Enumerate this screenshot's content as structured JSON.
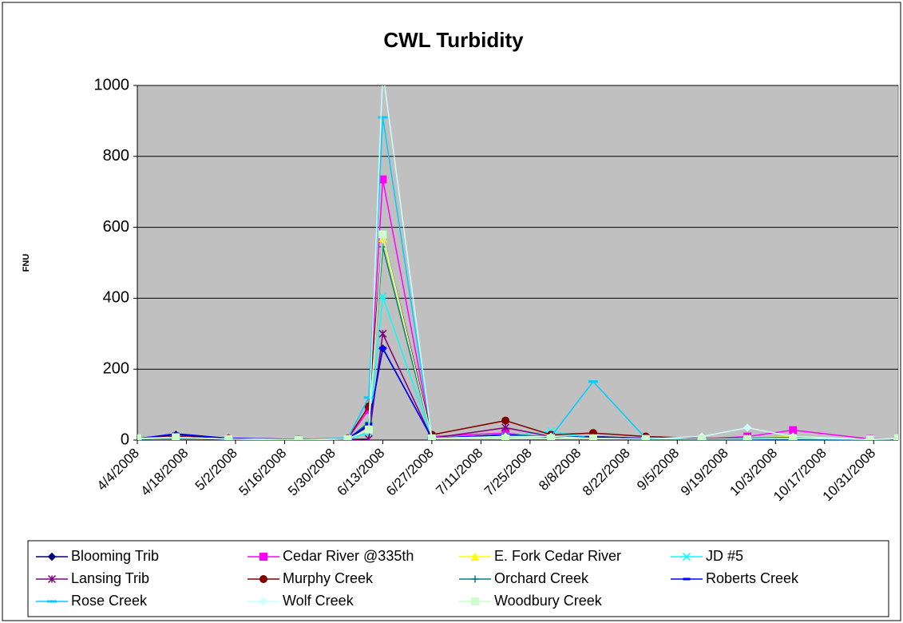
{
  "chart_data": {
    "type": "line",
    "title": "CWL Turbidity",
    "y_label": "FNU",
    "x": [
      "2008-04-04",
      "2008-04-15",
      "2008-04-30",
      "2008-05-20",
      "2008-06-03",
      "2008-06-09",
      "2008-06-13",
      "2008-06-27",
      "2008-07-18",
      "2008-07-31",
      "2008-08-12",
      "2008-08-27",
      "2008-09-12",
      "2008-09-25",
      "2008-10-08",
      "2008-10-30",
      "2008-11-07"
    ],
    "xlim": [
      "2008-04-04",
      "2008-11-07"
    ],
    "xticks": [
      {
        "value": "2008-04-04",
        "label": "4/4/2008"
      },
      {
        "value": "2008-04-18",
        "label": "4/18/2008"
      },
      {
        "value": "2008-05-02",
        "label": "5/2/2008"
      },
      {
        "value": "2008-05-16",
        "label": "5/16/2008"
      },
      {
        "value": "2008-05-30",
        "label": "5/30/2008"
      },
      {
        "value": "2008-06-13",
        "label": "6/13/2008"
      },
      {
        "value": "2008-06-27",
        "label": "6/27/2008"
      },
      {
        "value": "2008-07-11",
        "label": "7/11/2008"
      },
      {
        "value": "2008-07-25",
        "label": "7/25/2008"
      },
      {
        "value": "2008-08-08",
        "label": "8/8/2008"
      },
      {
        "value": "2008-08-22",
        "label": "8/22/2008"
      },
      {
        "value": "2008-09-05",
        "label": "9/5/2008"
      },
      {
        "value": "2008-09-19",
        "label": "9/19/2008"
      },
      {
        "value": "2008-10-03",
        "label": "10/3/2008"
      },
      {
        "value": "2008-10-17",
        "label": "10/17/2008"
      },
      {
        "value": "2008-10-31",
        "label": "10/31/2008"
      }
    ],
    "ylim": [
      0,
      1000
    ],
    "yticks": [
      0,
      200,
      400,
      600,
      800,
      1000
    ],
    "grid": true,
    "legend": "bottom",
    "series": [
      {
        "name": "Blooming Trib",
        "color": "#000080",
        "marker": "diamond",
        "values": [
          5,
          15,
          5,
          2,
          3,
          40,
          258,
          5,
          15,
          8,
          10,
          5,
          3,
          2,
          3,
          2,
          3
        ]
      },
      {
        "name": "Cedar River @335th",
        "color": "#ff00ff",
        "marker": "square",
        "values": [
          3,
          8,
          3,
          2,
          3,
          85,
          735,
          10,
          20,
          5,
          8,
          5,
          3,
          10,
          28,
          3,
          3
        ]
      },
      {
        "name": "E. Fork Cedar River",
        "color": "#ffff00",
        "marker": "triangle",
        "values": [
          3,
          5,
          2,
          1,
          3,
          30,
          570,
          5,
          10,
          5,
          8,
          5,
          3,
          5,
          10,
          2,
          3
        ]
      },
      {
        "name": "JD #5",
        "color": "#00ffff",
        "marker": "x",
        "values": [
          3,
          5,
          3,
          1,
          3,
          20,
          405,
          5,
          10,
          25,
          5,
          3,
          3,
          3,
          5,
          2,
          3
        ]
      },
      {
        "name": "Lansing Trib",
        "color": "#800080",
        "marker": "star",
        "values": [
          3,
          5,
          2,
          1,
          2,
          3,
          300,
          5,
          35,
          10,
          8,
          5,
          3,
          5,
          5,
          2,
          3
        ]
      },
      {
        "name": "Murphy Creek",
        "color": "#800000",
        "marker": "circle",
        "values": [
          5,
          10,
          5,
          2,
          5,
          95,
          580,
          15,
          55,
          15,
          20,
          10,
          5,
          5,
          5,
          3,
          3
        ]
      },
      {
        "name": "Orchard Creek",
        "color": "#008080",
        "marker": "plus",
        "values": [
          3,
          5,
          3,
          1,
          3,
          50,
          545,
          5,
          15,
          10,
          8,
          5,
          3,
          5,
          8,
          2,
          3
        ]
      },
      {
        "name": "Roberts Creek",
        "color": "#0000ff",
        "marker": "dash",
        "values": [
          4,
          18,
          5,
          2,
          3,
          45,
          260,
          5,
          15,
          8,
          8,
          5,
          3,
          3,
          3,
          2,
          3
        ]
      },
      {
        "name": "Rose Creek",
        "color": "#00ccff",
        "marker": "bar",
        "values": [
          3,
          5,
          3,
          1,
          5,
          120,
          910,
          5,
          10,
          10,
          165,
          5,
          3,
          3,
          3,
          2,
          3
        ]
      },
      {
        "name": "Wolf Creek",
        "color": "#ccffff",
        "marker": "diamond",
        "values": [
          3,
          8,
          3,
          1,
          3,
          30,
          1040,
          5,
          10,
          10,
          5,
          3,
          10,
          35,
          10,
          2,
          3
        ]
      },
      {
        "name": "Woodbury Creek",
        "color": "#ccffcc",
        "marker": "square",
        "values": [
          5,
          8,
          3,
          1,
          3,
          30,
          580,
          5,
          5,
          5,
          5,
          3,
          3,
          3,
          5,
          2,
          5
        ]
      }
    ]
  }
}
